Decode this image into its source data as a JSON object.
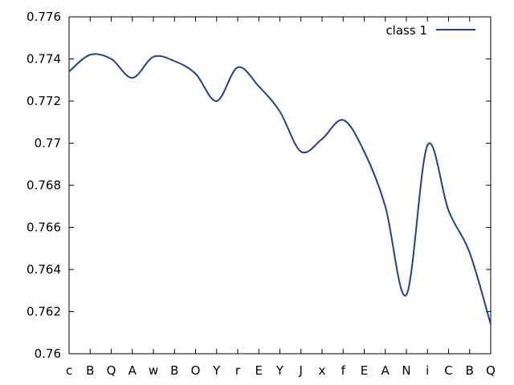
{
  "chart_data": {
    "type": "line",
    "categories": [
      "c",
      "B",
      "Q",
      "A",
      "w",
      "B",
      "O",
      "Y",
      "r",
      "E",
      "Y",
      "J",
      "x",
      "f",
      "E",
      "A",
      "N",
      "i",
      "C",
      "B",
      "Q"
    ],
    "series": [
      {
        "name": "class 1",
        "color": "#1f3f99",
        "values": [
          0.7734,
          0.7742,
          0.774,
          0.7731,
          0.7741,
          0.7739,
          0.7733,
          0.772,
          0.7736,
          0.7727,
          0.7715,
          0.7696,
          0.7702,
          0.7711,
          0.7696,
          0.767,
          0.7628,
          0.7699,
          0.7668,
          0.7648,
          0.7614
        ]
      }
    ],
    "ylim": [
      0.76,
      0.776
    ],
    "yticks": [
      0.76,
      0.762,
      0.764,
      0.766,
      0.768,
      0.77,
      0.772,
      0.774,
      0.776
    ],
    "ytick_labels": [
      "0.76",
      "0.762",
      "0.764",
      "0.766",
      "0.768",
      "0.77",
      "0.772",
      "0.774",
      "0.776"
    ],
    "legend_position": "top-right",
    "grid": false
  }
}
